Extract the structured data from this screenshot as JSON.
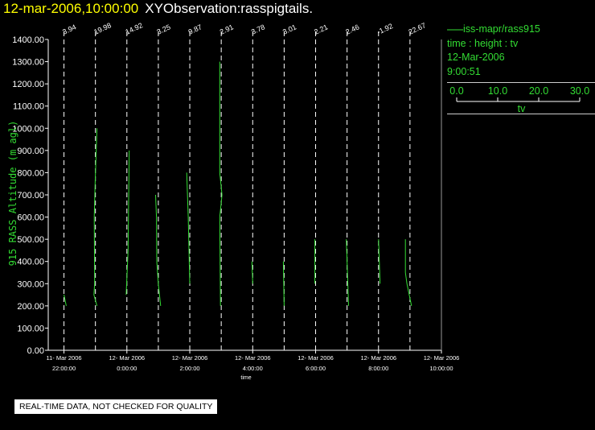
{
  "header": {
    "datetime": "12-mar-2006,10:00:00",
    "title": "XYObservation:rasspigtails."
  },
  "legend": {
    "series_label": "iss-mapr/rass915",
    "variables": "time : height : tv",
    "date": "12-Mar-2006",
    "time": "9:00:51",
    "scale_ticks": [
      "0.0",
      "10.0",
      "20.0",
      "30.0"
    ],
    "scale_label": "tv"
  },
  "notice": "REAL-TIME DATA, NOT CHECKED FOR QUALITY",
  "colors": {
    "series": "#33dd33",
    "axis": "#ffffff",
    "title": "#ffff00",
    "labels": "#ffffff"
  },
  "chart_data": {
    "type": "line",
    "xlabel": "time",
    "ylabel": "915 RASS Altitude (m agl)",
    "ylim": [
      0,
      1400
    ],
    "yticks": [
      "0.00",
      "100.00",
      "200.00",
      "300.00",
      "400.00",
      "500.00",
      "600.00",
      "700.00",
      "800.00",
      "900.00",
      "1000.00",
      "1100.00",
      "1200.00",
      "1300.00",
      "1400.00"
    ],
    "xlim": [
      "2006-03-11 21:30",
      "2006-03-12 10:00"
    ],
    "xticks": [
      {
        "time": "2006-03-11 22:00",
        "date": "11- Mar 2006",
        "clock": "22:00:00"
      },
      {
        "time": "2006-03-12 00:00",
        "date": "12- Mar 2006",
        "clock": "0:00:00"
      },
      {
        "time": "2006-03-12 02:00",
        "date": "12- Mar 2006",
        "clock": "2:00:00"
      },
      {
        "time": "2006-03-12 04:00",
        "date": "12- Mar 2006",
        "clock": "4:00:00"
      },
      {
        "time": "2006-03-12 06:00",
        "date": "12- Mar 2006",
        "clock": "6:00:00"
      },
      {
        "time": "2006-03-12 08:00",
        "date": "12- Mar 2006",
        "clock": "8:00:00"
      },
      {
        "time": "2006-03-12 10:00",
        "date": "12- Mar 2006",
        "clock": "10:00:00"
      }
    ],
    "profiles": [
      {
        "time": "2006-03-11 22:00",
        "label": "3.94",
        "points": [
          [
            1.5,
            200
          ],
          [
            0,
            250
          ]
        ]
      },
      {
        "time": "2006-03-11 23:00",
        "label": "19.98",
        "points": [
          [
            1,
            200
          ],
          [
            -1,
            250
          ],
          [
            -0.5,
            300
          ],
          [
            -0.8,
            600
          ],
          [
            -0.2,
            750
          ],
          [
            1,
            1000
          ]
        ]
      },
      {
        "time": "2006-03-12 00:00",
        "label": "14.92",
        "points": [
          [
            -0.5,
            250
          ],
          [
            0.8,
            450
          ],
          [
            1.2,
            700
          ],
          [
            1.5,
            900
          ]
        ]
      },
      {
        "time": "2006-03-12 01:00",
        "label": "3.25",
        "points": [
          [
            1.5,
            200
          ],
          [
            0,
            300
          ],
          [
            -1,
            400
          ],
          [
            -1.2,
            600
          ],
          [
            -1.8,
            700
          ]
        ]
      },
      {
        "time": "2006-03-12 02:00",
        "label": "9.87",
        "points": [
          [
            0,
            300
          ],
          [
            -1,
            600
          ],
          [
            -2,
            800
          ]
        ]
      },
      {
        "time": "2006-03-12 03:00",
        "label": "2.91",
        "points": [
          [
            -0.5,
            200
          ],
          [
            -1,
            600
          ],
          [
            0.5,
            700
          ],
          [
            -1,
            800
          ],
          [
            -1,
            1300
          ]
        ]
      },
      {
        "time": "2006-03-12 04:00",
        "label": "3.78",
        "points": [
          [
            0,
            300
          ],
          [
            -0.5,
            400
          ]
        ]
      },
      {
        "time": "2006-03-12 05:00",
        "label": "3.01",
        "points": [
          [
            0,
            200
          ],
          [
            -0.5,
            400
          ]
        ]
      },
      {
        "time": "2006-03-12 06:00",
        "label": "2.21",
        "points": [
          [
            -0.5,
            300
          ],
          [
            -0.5,
            500
          ]
        ]
      },
      {
        "time": "2006-03-12 07:00",
        "label": "2.46",
        "points": [
          [
            1,
            200
          ],
          [
            0.5,
            300
          ],
          [
            -0.5,
            500
          ]
        ]
      },
      {
        "time": "2006-03-12 08:00",
        "label": "-1.92",
        "points": [
          [
            1,
            300
          ],
          [
            0,
            500
          ]
        ]
      },
      {
        "time": "2006-03-12 09:00",
        "label": "22.67",
        "points": [
          [
            1,
            200
          ],
          [
            -2,
            300
          ],
          [
            -3,
            350
          ],
          [
            -3,
            400
          ],
          [
            -3,
            500
          ]
        ]
      }
    ]
  }
}
